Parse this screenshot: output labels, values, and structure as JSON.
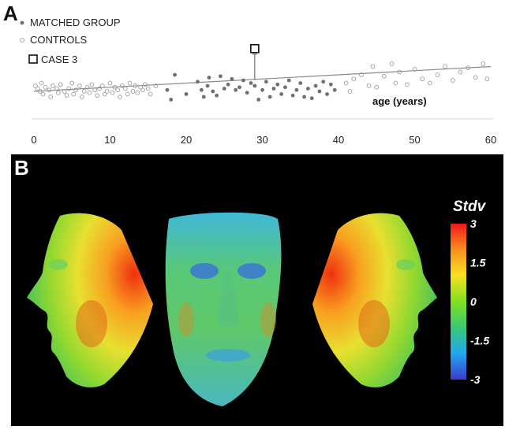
{
  "panels": {
    "a_letter": "A",
    "b_letter": "B"
  },
  "chart_data": {
    "type": "scatter",
    "xlabel": "age (years)",
    "ylabel": "",
    "xlim": [
      0,
      60
    ],
    "x_ticks": [
      "0",
      "10",
      "20",
      "30",
      "40",
      "50",
      "60"
    ],
    "legend": {
      "placement": "top-left",
      "entries": [
        {
          "label": "MATCHED GROUP",
          "marker": "filled-circle",
          "color": "#707070"
        },
        {
          "label": "CONTROLS",
          "marker": "open-circle",
          "color": "#9a9a9a"
        },
        {
          "label": "CASE 3",
          "marker": "open-square",
          "color": "#111111"
        }
      ]
    },
    "series": [
      {
        "name": "MATCHED GROUP",
        "points": [
          [
            17.5,
            0.05
          ],
          [
            18,
            -0.3
          ],
          [
            18.5,
            0.6
          ],
          [
            20,
            -0.1
          ],
          [
            21.5,
            0.35
          ],
          [
            22,
            0.05
          ],
          [
            22.3,
            -0.2
          ],
          [
            22.8,
            0.2
          ],
          [
            23,
            0.5
          ],
          [
            23.5,
            0.0
          ],
          [
            24,
            -0.15
          ],
          [
            24.5,
            0.55
          ],
          [
            25,
            0.1
          ],
          [
            25.5,
            0.25
          ],
          [
            26,
            0.45
          ],
          [
            26.5,
            0.05
          ],
          [
            27,
            0.15
          ],
          [
            27.5,
            0.4
          ],
          [
            28,
            -0.05
          ],
          [
            28.5,
            0.3
          ],
          [
            29,
            0.2
          ],
          [
            29.5,
            -0.3
          ],
          [
            30,
            0.05
          ],
          [
            30.5,
            0.35
          ],
          [
            31,
            -0.2
          ],
          [
            31.5,
            0.1
          ],
          [
            32,
            0.25
          ],
          [
            32.5,
            -0.1
          ],
          [
            33,
            0.15
          ],
          [
            33.5,
            0.4
          ],
          [
            34,
            -0.15
          ],
          [
            34.5,
            0.05
          ],
          [
            35,
            0.3
          ],
          [
            35.5,
            -0.2
          ],
          [
            36,
            0.1
          ],
          [
            36.5,
            -0.25
          ],
          [
            37,
            0.2
          ],
          [
            37.5,
            0.0
          ],
          [
            38,
            0.35
          ],
          [
            38.5,
            -0.1
          ],
          [
            39,
            0.25
          ],
          [
            39.5,
            0.05
          ]
        ]
      },
      {
        "name": "CONTROLS",
        "points": [
          [
            0.2,
            0.2
          ],
          [
            0.5,
            0.1
          ],
          [
            0.8,
            0.0
          ],
          [
            1,
            0.3
          ],
          [
            1.2,
            -0.1
          ],
          [
            1.5,
            0.15
          ],
          [
            2,
            0.05
          ],
          [
            2.2,
            -0.2
          ],
          [
            2.5,
            0.2
          ],
          [
            3,
            0.1
          ],
          [
            3.2,
            -0.05
          ],
          [
            3.5,
            0.25
          ],
          [
            4,
            0.0
          ],
          [
            4.3,
            -0.15
          ],
          [
            4.6,
            0.1
          ],
          [
            5,
            0.3
          ],
          [
            5.2,
            -0.1
          ],
          [
            5.5,
            0.05
          ],
          [
            6,
            0.2
          ],
          [
            6.3,
            -0.2
          ],
          [
            6.6,
            0.0
          ],
          [
            7,
            0.15
          ],
          [
            7.3,
            -0.05
          ],
          [
            7.6,
            0.25
          ],
          [
            8,
            0.05
          ],
          [
            8.3,
            -0.15
          ],
          [
            8.6,
            0.1
          ],
          [
            9,
            0.2
          ],
          [
            9.3,
            -0.1
          ],
          [
            9.6,
            0.0
          ],
          [
            10,
            0.3
          ],
          [
            10.3,
            -0.05
          ],
          [
            10.6,
            0.15
          ],
          [
            11,
            0.05
          ],
          [
            11.3,
            -0.2
          ],
          [
            11.6,
            0.2
          ],
          [
            12,
            0.1
          ],
          [
            12.3,
            -0.1
          ],
          [
            12.6,
            0.3
          ],
          [
            13,
            0.0
          ],
          [
            13.3,
            0.2
          ],
          [
            13.6,
            -0.05
          ],
          [
            14,
            0.15
          ],
          [
            14.3,
            0.05
          ],
          [
            14.6,
            0.25
          ],
          [
            15,
            0.1
          ],
          [
            15.3,
            -0.1
          ],
          [
            16,
            0.2
          ],
          [
            41,
            0.3
          ],
          [
            41.5,
            0.0
          ],
          [
            42,
            0.45
          ],
          [
            43,
            0.6
          ],
          [
            44,
            0.2
          ],
          [
            44.5,
            0.9
          ],
          [
            45,
            0.15
          ],
          [
            46,
            0.55
          ],
          [
            47,
            1.0
          ],
          [
            47.5,
            0.3
          ],
          [
            48,
            0.7
          ],
          [
            49,
            0.25
          ],
          [
            50,
            0.8
          ],
          [
            51,
            0.45
          ],
          [
            52,
            0.3
          ],
          [
            53,
            0.6
          ],
          [
            54,
            0.9
          ],
          [
            55,
            0.4
          ],
          [
            56,
            0.7
          ],
          [
            57,
            0.85
          ],
          [
            58,
            0.5
          ],
          [
            59,
            1.0
          ],
          [
            59.5,
            0.45
          ]
        ]
      },
      {
        "name": "CASE 3",
        "points": [
          [
            29,
            1.55
          ]
        ]
      }
    ],
    "trend_line": {
      "from": [
        0,
        0.0
      ],
      "to": [
        60,
        0.9
      ]
    },
    "case_residual": {
      "x": 29,
      "y_from": 0.42,
      "y_to": 1.55
    }
  },
  "colorbar": {
    "title": "Stdv",
    "tick_labels": [
      "3",
      "1.5",
      "0",
      "-1.5",
      "-3"
    ],
    "tick_values": [
      3,
      1.5,
      0,
      -1.5,
      -3
    ],
    "range": [
      -3,
      3
    ],
    "colors": [
      "#3a3ad0",
      "#22a8f0",
      "#38c878",
      "#80e020",
      "#f8e020",
      "#f89020",
      "#f01818"
    ]
  },
  "faces": {
    "views": [
      "left-profile",
      "frontal",
      "right-profile"
    ]
  }
}
